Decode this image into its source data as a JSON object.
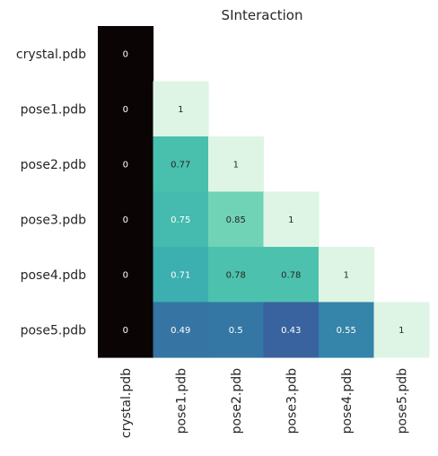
{
  "chart_data": {
    "type": "heatmap",
    "title": "SInteraction",
    "xlabel": "",
    "ylabel": "",
    "row_labels": [
      "crystal.pdb",
      "pose1.pdb",
      "pose2.pdb",
      "pose3.pdb",
      "pose4.pdb",
      "pose5.pdb"
    ],
    "col_labels": [
      "crystal.pdb",
      "pose1.pdb",
      "pose2.pdb",
      "pose3.pdb",
      "pose4.pdb",
      "pose5.pdb"
    ],
    "values": [
      [
        0,
        null,
        null,
        null,
        null,
        null
      ],
      [
        0,
        1,
        null,
        null,
        null,
        null
      ],
      [
        0,
        0.77,
        1,
        null,
        null,
        null
      ],
      [
        0,
        0.75,
        0.85,
        1,
        null,
        null
      ],
      [
        0,
        0.71,
        0.78,
        0.78,
        1,
        null
      ],
      [
        0,
        0.49,
        0.5,
        0.43,
        0.55,
        1
      ]
    ],
    "value_range": [
      0,
      1
    ],
    "mask": "upper-triangle",
    "colorbar": false,
    "colormap": "mako",
    "grid": false
  }
}
